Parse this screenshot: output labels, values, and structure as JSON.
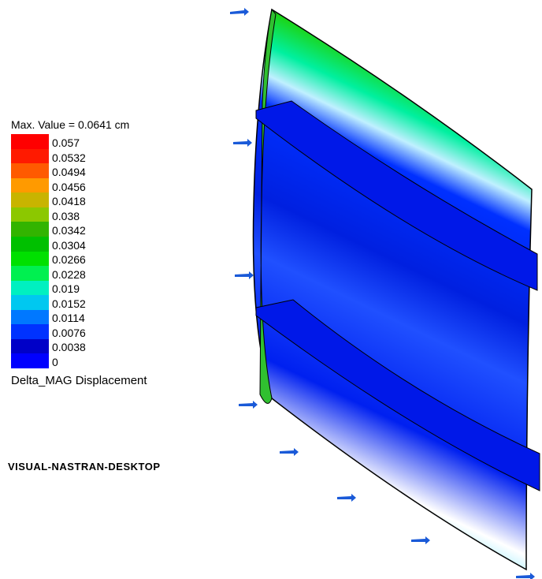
{
  "legend": {
    "title": "Max. Value = 0.0641 cm",
    "entries": [
      {
        "label": "0.057",
        "color": "#ff0000"
      },
      {
        "label": "0.0532",
        "color": "#ff1a00"
      },
      {
        "label": "0.0494",
        "color": "#ff5a00"
      },
      {
        "label": "0.0456",
        "color": "#ff9a00"
      },
      {
        "label": "0.0418",
        "color": "#c8b400"
      },
      {
        "label": "0.038",
        "color": "#8cc800"
      },
      {
        "label": "0.0342",
        "color": "#32b400"
      },
      {
        "label": "0.0304",
        "color": "#00c000"
      },
      {
        "label": "0.0266",
        "color": "#00e000"
      },
      {
        "label": "0.0228",
        "color": "#00f050"
      },
      {
        "label": "0.019",
        "color": "#00f0c0"
      },
      {
        "label": "0.0152",
        "color": "#00c8f0"
      },
      {
        "label": "0.0114",
        "color": "#0078ff"
      },
      {
        "label": "0.0076",
        "color": "#0032ff"
      },
      {
        "label": "0.0038",
        "color": "#0000c8"
      },
      {
        "label": "0",
        "color": "#0000ff"
      }
    ],
    "quantity": "Delta_MAG Displacement"
  },
  "watermark": "VISUAL-NASTRAN-DESKTOP"
}
